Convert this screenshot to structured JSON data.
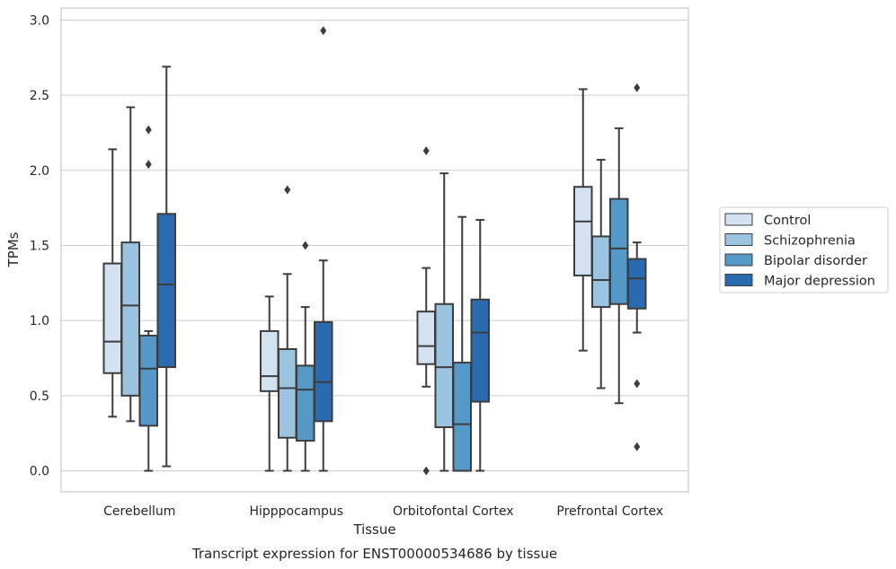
{
  "chart_data": {
    "type": "box",
    "title": "Transcript expression for ENST00000534686 by tissue",
    "xlabel": "Tissue",
    "ylabel": "TPMs",
    "ylim": [
      -0.14,
      3.08
    ],
    "yticks": [
      "0.0",
      "0.5",
      "1.0",
      "1.5",
      "2.0",
      "2.5",
      "3.0"
    ],
    "grid": "horizontal",
    "legend_position": "right",
    "categories": [
      "Cerebellum",
      "Hipppocampus",
      "Orbitofontal Cortex",
      "Prefrontal Cortex"
    ],
    "series": [
      {
        "name": "Control",
        "color": "#d2e2f1",
        "boxes": [
          {
            "whislo": 0.36,
            "q1": 0.65,
            "med": 0.86,
            "q3": 1.38,
            "whishi": 2.14,
            "fliers": []
          },
          {
            "whislo": 0.0,
            "q1": 0.53,
            "med": 0.63,
            "q3": 0.93,
            "whishi": 1.16,
            "fliers": []
          },
          {
            "whislo": 0.56,
            "q1": 0.71,
            "med": 0.83,
            "q3": 1.06,
            "whishi": 1.35,
            "fliers": [
              0.0,
              2.13
            ]
          },
          {
            "whislo": 0.8,
            "q1": 1.3,
            "med": 1.66,
            "q3": 1.89,
            "whishi": 2.54,
            "fliers": []
          }
        ]
      },
      {
        "name": "Schizophrenia",
        "color": "#9ac4e0",
        "boxes": [
          {
            "whislo": 0.33,
            "q1": 0.5,
            "med": 1.1,
            "q3": 1.52,
            "whishi": 2.42,
            "fliers": []
          },
          {
            "whislo": 0.0,
            "q1": 0.22,
            "med": 0.55,
            "q3": 0.81,
            "whishi": 1.31,
            "fliers": [
              1.87
            ]
          },
          {
            "whislo": 0.0,
            "q1": 0.29,
            "med": 0.69,
            "q3": 1.11,
            "whishi": 1.98,
            "fliers": []
          },
          {
            "whislo": 0.55,
            "q1": 1.09,
            "med": 1.27,
            "q3": 1.56,
            "whishi": 2.07,
            "fliers": []
          }
        ]
      },
      {
        "name": "Bipolar disorder",
        "color": "#5599c8",
        "boxes": [
          {
            "whislo": 0.0,
            "q1": 0.3,
            "med": 0.68,
            "q3": 0.9,
            "whishi": 0.93,
            "fliers": [
              2.04,
              2.27
            ]
          },
          {
            "whislo": 0.0,
            "q1": 0.2,
            "med": 0.54,
            "q3": 0.7,
            "whishi": 1.09,
            "fliers": [
              1.5
            ]
          },
          {
            "whislo": 0.0,
            "q1": 0.0,
            "med": 0.31,
            "q3": 0.72,
            "whishi": 1.69,
            "fliers": []
          },
          {
            "whislo": 0.45,
            "q1": 1.11,
            "med": 1.48,
            "q3": 1.81,
            "whishi": 2.28,
            "fliers": []
          }
        ]
      },
      {
        "name": "Major depression",
        "color": "#2a6ab0",
        "boxes": [
          {
            "whislo": 0.03,
            "q1": 0.69,
            "med": 1.24,
            "q3": 1.71,
            "whishi": 2.69,
            "fliers": []
          },
          {
            "whislo": 0.0,
            "q1": 0.33,
            "med": 0.59,
            "q3": 0.99,
            "whishi": 1.4,
            "fliers": [
              2.93
            ]
          },
          {
            "whislo": 0.0,
            "q1": 0.46,
            "med": 0.92,
            "q3": 1.14,
            "whishi": 1.67,
            "fliers": []
          },
          {
            "whislo": 0.92,
            "q1": 1.08,
            "med": 1.28,
            "q3": 1.41,
            "whishi": 1.52,
            "fliers": [
              0.16,
              0.58,
              2.55
            ]
          }
        ]
      }
    ]
  }
}
